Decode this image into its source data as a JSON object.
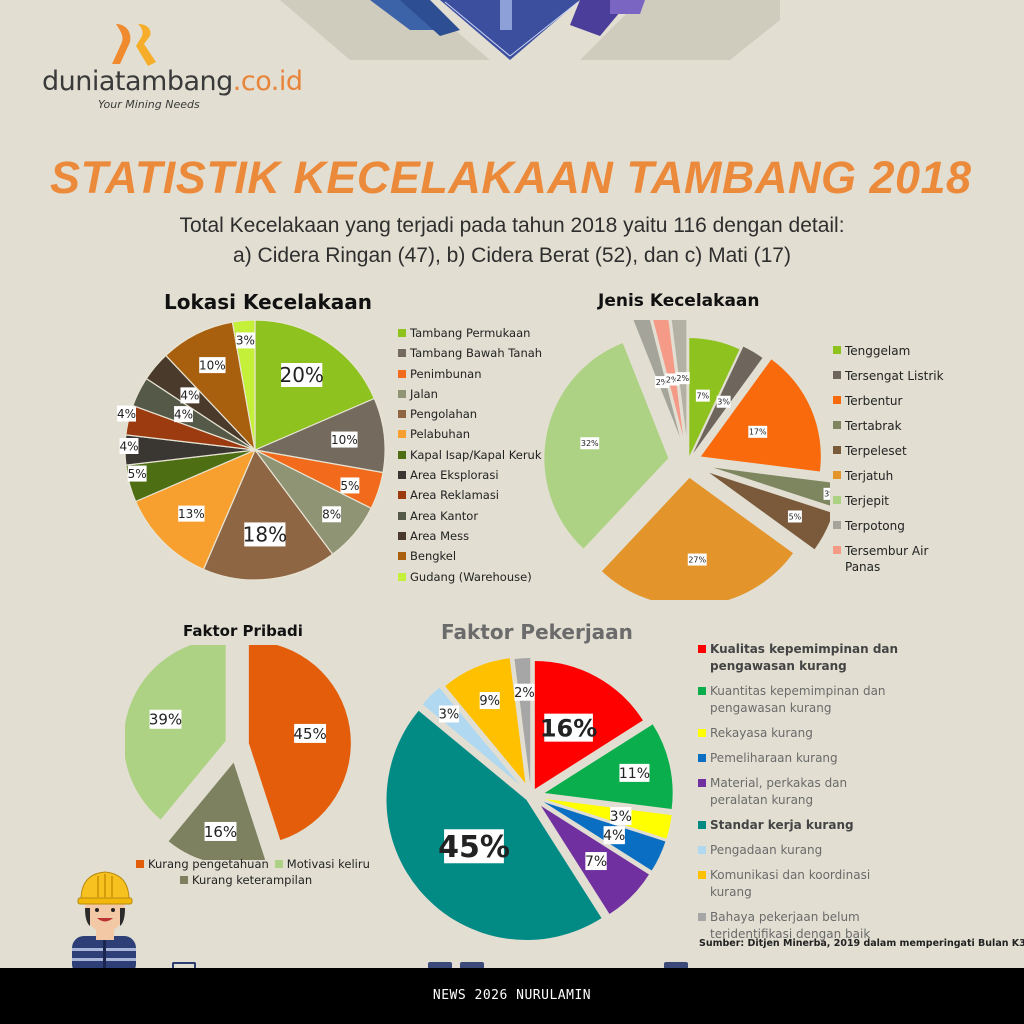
{
  "brand": {
    "name_main": "duniatambang",
    "name_domain": ".co.id",
    "tagline": "Your Mining Needs",
    "colors": {
      "orange": "#ef8a2e",
      "yellow": "#f6ae2a"
    }
  },
  "header": {
    "title": "STATISTIK KECELAKAAN TAMBANG 2018",
    "subtitle_line1": "Total Kecelakaan yang terjadi pada tahun 2018 yaitu 116 dengan detail:",
    "subtitle_line2": "a) Cidera Ringan (47), b) Cidera Berat (52), dan c)  Mati (17)",
    "title_color": "#ec8a3c"
  },
  "summary": {
    "total": 116,
    "cidera_ringan": 47,
    "cidera_berat": 52,
    "mati": 17
  },
  "chart_data": [
    {
      "id": "lokasi",
      "type": "pie",
      "title": "Lokasi Kecelakaan",
      "categories": [
        "Tambang Permukaan",
        "Tambang Bawah Tanah",
        "Penimbunan",
        "Jalan",
        "Pengolahan",
        "Pelabuhan",
        "Kapal Isap/Kapal Keruk",
        "Area Eksplorasi",
        "Area Reklamasi",
        "Area Kantor",
        "Area Mess",
        "Bengkel",
        "Gudang (Warehouse)"
      ],
      "values": [
        20,
        10,
        5,
        8,
        18,
        13,
        5,
        4,
        4,
        4,
        4,
        10,
        3
      ],
      "labels": [
        "20%",
        "10%",
        "5%",
        "8%",
        "18%",
        "13%",
        "5%",
        "4%",
        "4%",
        "4%",
        "4%",
        "10%",
        "3%"
      ],
      "colors": [
        "#8dc21f",
        "#746b5e",
        "#f26a1b",
        "#8f9475",
        "#8e6644",
        "#f7a030",
        "#4e6e14",
        "#3a3632",
        "#9c3a10",
        "#555a48",
        "#4a3a2c",
        "#a8600e",
        "#c4f03a"
      ],
      "legend_position": "right"
    },
    {
      "id": "jenis",
      "type": "pie",
      "title": "Jenis Kecelakaan",
      "categories": [
        "Tenggelam",
        "Tersengat Listrik",
        "Terbentur",
        "Tertabrak",
        "Terpeleset",
        "Terjatuh",
        "Terjepit",
        "Terpotong",
        "Tersembur Air Panas",
        "Terpotong (2)"
      ],
      "legend": [
        "Tenggelam",
        "Tersengat Listrik",
        "Terbentur",
        "Tertabrak",
        "Terpeleset",
        "Terjatuh",
        "Terjepit",
        "Terpotong",
        "Tersembur Air Panas"
      ],
      "values": [
        7,
        3,
        17,
        3,
        5,
        27,
        32,
        2,
        2,
        2
      ],
      "labels": [
        "7%",
        "3%",
        "17%",
        "3%",
        "5%",
        "27%",
        "32%",
        "2%",
        "2%",
        "2%"
      ],
      "colors": [
        "#8dc21f",
        "#6e665c",
        "#f86a0c",
        "#7e8660",
        "#7a5a3a",
        "#e3952c",
        "#aed284",
        "#a5a49a",
        "#f69a88",
        "#b3b1a4"
      ],
      "legend_colors": [
        "#8dc21f",
        "#6e665c",
        "#f86a0c",
        "#7e8660",
        "#7a5a3a",
        "#e3952c",
        "#aed284",
        "#a5a49a",
        "#f69a88"
      ],
      "legend_position": "right"
    },
    {
      "id": "pribadi",
      "type": "pie",
      "title": "Faktor Pribadi",
      "categories": [
        "Kurang pengetahuan",
        "Kurang keterampilan",
        "Motivasi keliru"
      ],
      "values": [
        45,
        16,
        39
      ],
      "labels": [
        "45%",
        "16%",
        "39%"
      ],
      "colors": [
        "#e35d0a",
        "#7d8160",
        "#aed284"
      ],
      "legend_position": "bottom"
    },
    {
      "id": "pekerjaan",
      "type": "pie",
      "title": "Faktor Pekerjaan",
      "categories": [
        "Kualitas kepemimpinan dan pengawasan kurang",
        "Kuantitas kepemimpinan dan pengawasan kurang",
        "Rekayasa kurang",
        "Pemeliharaan kurang",
        "Material, perkakas dan peralatan kurang",
        "Standar kerja kurang",
        "Pengadaan kurang",
        "Komunikasi dan koordinasi kurang",
        "Bahaya pekerjaan belum teridentifikasi dengan baik"
      ],
      "values": [
        16,
        11,
        3,
        4,
        7,
        45,
        3,
        9,
        2
      ],
      "labels": [
        "16%",
        "11%",
        "3%",
        "4%",
        "7%",
        "45%",
        "3%",
        "9%",
        "2%"
      ],
      "colors": [
        "#ff0000",
        "#0bae4c",
        "#ffff00",
        "#0a6fc2",
        "#7030a0",
        "#028a85",
        "#b0d8f0",
        "#ffc000",
        "#a6a6a6"
      ],
      "legend_bold": [
        true,
        false,
        false,
        false,
        false,
        true,
        false,
        false,
        false
      ],
      "legend_position": "right"
    }
  ],
  "legends": {
    "lokasi": [
      "Tambang Permukaan",
      "Tambang Bawah Tanah",
      "Penimbunan",
      "Jalan",
      "Pengolahan",
      "Pelabuhan",
      "Kapal Isap/Kapal Keruk",
      "Area Eksplorasi",
      "Area Reklamasi",
      "Area Kantor",
      "Area Mess",
      "Bengkel",
      "Gudang (Warehouse)"
    ],
    "jenis": [
      "Tenggelam",
      "Tersengat Listrik",
      "Terbentur",
      "Tertabrak",
      "Terpeleset",
      "Terjatuh",
      "Terjepit",
      "Terpotong",
      "Tersembur Air",
      "Panas"
    ],
    "pribadi": {
      "row1a": "Kurang pengetahuan",
      "row1b": "Motivasi keliru",
      "row2": "Kurang keterampilan"
    },
    "pekerjaan": [
      [
        "Kualitas kepemimpinan dan",
        "pengawasan kurang"
      ],
      [
        "Kuantitas kepemimpinan dan",
        "pengawasan kurang"
      ],
      [
        "Rekayasa kurang"
      ],
      [
        "Pemeliharaan kurang"
      ],
      [
        "Material, perkakas dan",
        "peralatan kurang"
      ],
      [
        "Standar kerja kurang"
      ],
      [
        "Pengadaan kurang"
      ],
      [
        "Komunikasi dan koordinasi",
        "kurang"
      ],
      [
        "Bahaya pekerjaan belum",
        "teridentifikasi dengan baik"
      ]
    ]
  },
  "source": "Sumber: Ditjen Minerba, 2019 dalam memperingati Bulan K3",
  "footer": {
    "watermark": "NEWS 2026 NURULAMIN"
  }
}
